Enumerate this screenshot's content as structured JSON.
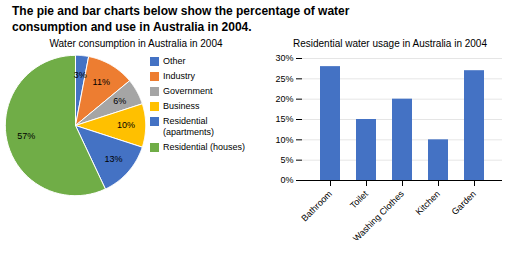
{
  "title": "The pie and bar charts below show the percentage of water\nconsumption and use in Australia in 2004.",
  "chart_data": [
    {
      "type": "pie",
      "title": "Water consumption in Australia in 2004",
      "categories": [
        "Other",
        "Industry",
        "Government",
        "Business",
        "Residential\n(apartments)",
        "Residential (houses)"
      ],
      "values": [
        3,
        11,
        6,
        10,
        13,
        57
      ],
      "value_labels": [
        "3%",
        "11%",
        "6%",
        "10%",
        "13%",
        "57%"
      ],
      "colors": [
        "#4472C4",
        "#ED7D31",
        "#A5A5A5",
        "#FFC000",
        "#4472C4",
        "#70AD47"
      ],
      "data_labels": true,
      "legend": "right"
    },
    {
      "type": "bar",
      "title": "Residential water usage in Australia in 2004",
      "categories": [
        "Bathroom",
        "Toilet",
        "Washing Clothes",
        "Kitchen",
        "Garden"
      ],
      "values": [
        28,
        15,
        20,
        10,
        27
      ],
      "color": "#4472C4",
      "ylim": [
        0,
        30
      ],
      "yticks": [
        {
          "value": 0,
          "label": "0%"
        },
        {
          "value": 5,
          "label": "5%"
        },
        {
          "value": 10,
          "label": "10%"
        },
        {
          "value": 15,
          "label": "15%"
        },
        {
          "value": 20,
          "label": "20%"
        },
        {
          "value": 25,
          "label": "25%"
        },
        {
          "value": 30,
          "label": "30%"
        }
      ],
      "grid": true
    }
  ]
}
